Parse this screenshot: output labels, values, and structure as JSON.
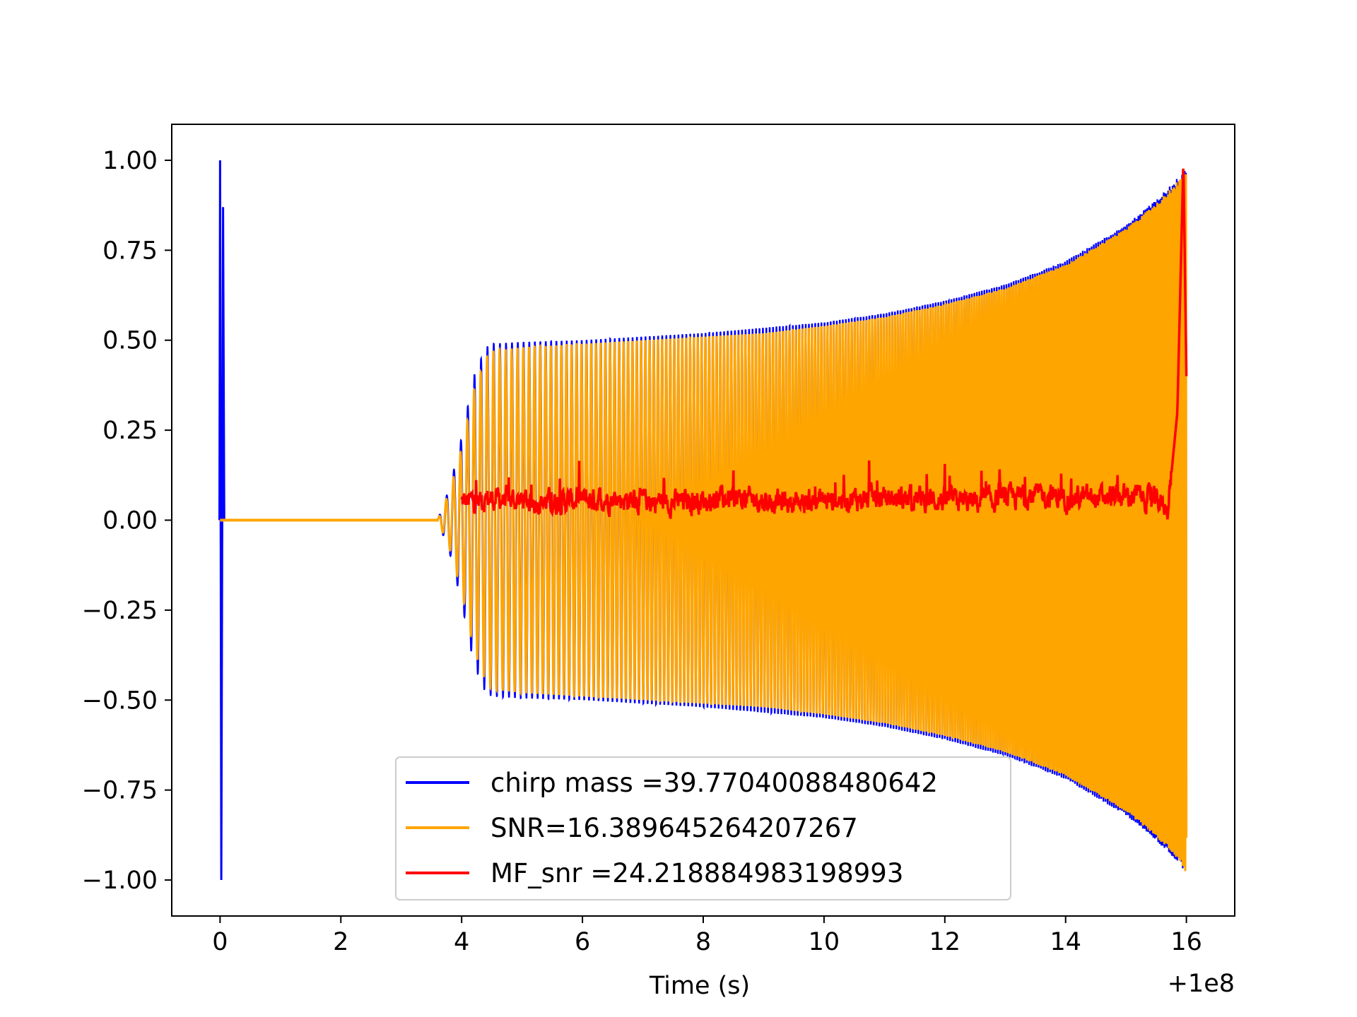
{
  "chart_data": {
    "type": "line",
    "title": "",
    "xlabel": "Time (s)",
    "ylabel": "",
    "x_offset_label": "+1e8",
    "xlim": [
      -0.8,
      16.8
    ],
    "ylim": [
      -1.1,
      1.1
    ],
    "x_ticks": [
      0,
      2,
      4,
      6,
      8,
      10,
      12,
      14,
      16
    ],
    "x_tick_labels": [
      "0",
      "2",
      "4",
      "6",
      "8",
      "10",
      "12",
      "14",
      "16"
    ],
    "y_ticks": [
      1.0,
      0.75,
      0.5,
      0.25,
      0.0,
      -0.25,
      -0.5,
      -0.75,
      -1.0
    ],
    "y_tick_labels": [
      "1.00",
      "0.75",
      "0.50",
      "0.25",
      "0.00",
      "−0.25",
      "−0.50",
      "−0.75",
      "−1.00"
    ],
    "grid": false,
    "legend_position": "lower-center",
    "series": [
      {
        "name": "chirp mass =39.77040088480642",
        "color": "#0000ff",
        "description_points": {
          "spike_x": [
            0.0,
            0.02,
            0.05
          ],
          "spike_y": [
            1.0,
            -1.0,
            0.87
          ],
          "envelope_x": [
            3.6,
            3.8,
            4.0,
            4.2,
            4.4,
            4.5,
            5,
            6,
            7,
            8,
            9,
            10,
            11,
            12,
            13,
            14,
            14.5,
            15,
            15.5,
            15.8,
            16.0
          ],
          "envelope_y": [
            0.0,
            0.09,
            0.23,
            0.4,
            0.48,
            0.49,
            0.495,
            0.5,
            0.51,
            0.52,
            0.535,
            0.55,
            0.575,
            0.61,
            0.655,
            0.72,
            0.77,
            0.82,
            0.89,
            0.94,
            0.98
          ]
        }
      },
      {
        "name": "SNR=16.389645264207267",
        "color": "#ffa500",
        "description_points": {
          "envelope_x": [
            3.6,
            3.8,
            4.0,
            4.2,
            4.4,
            4.5,
            5,
            6,
            7,
            8,
            9,
            10,
            11,
            12,
            13,
            14,
            14.5,
            15,
            15.5,
            15.8,
            16.0
          ],
          "envelope_y": [
            0.0,
            0.08,
            0.2,
            0.36,
            0.45,
            0.47,
            0.48,
            0.49,
            0.5,
            0.51,
            0.52,
            0.54,
            0.565,
            0.6,
            0.645,
            0.71,
            0.76,
            0.81,
            0.88,
            0.93,
            0.98
          ]
        }
      },
      {
        "name": "MF_snr =24.218884983198993",
        "color": "#ff0000",
        "description_points": {
          "x": [
            4.0,
            4.5,
            5.5,
            6.5,
            7.5,
            8.5,
            9.5,
            10.5,
            11.5,
            12.5,
            13.5,
            14.5,
            15.2,
            15.7,
            15.85,
            15.95,
            16.0
          ],
          "y": [
            0.05,
            0.06,
            0.05,
            0.06,
            0.05,
            0.06,
            0.05,
            0.06,
            0.06,
            0.05,
            0.07,
            0.06,
            0.07,
            0.04,
            0.3,
            1.0,
            0.4
          ]
        }
      }
    ]
  }
}
